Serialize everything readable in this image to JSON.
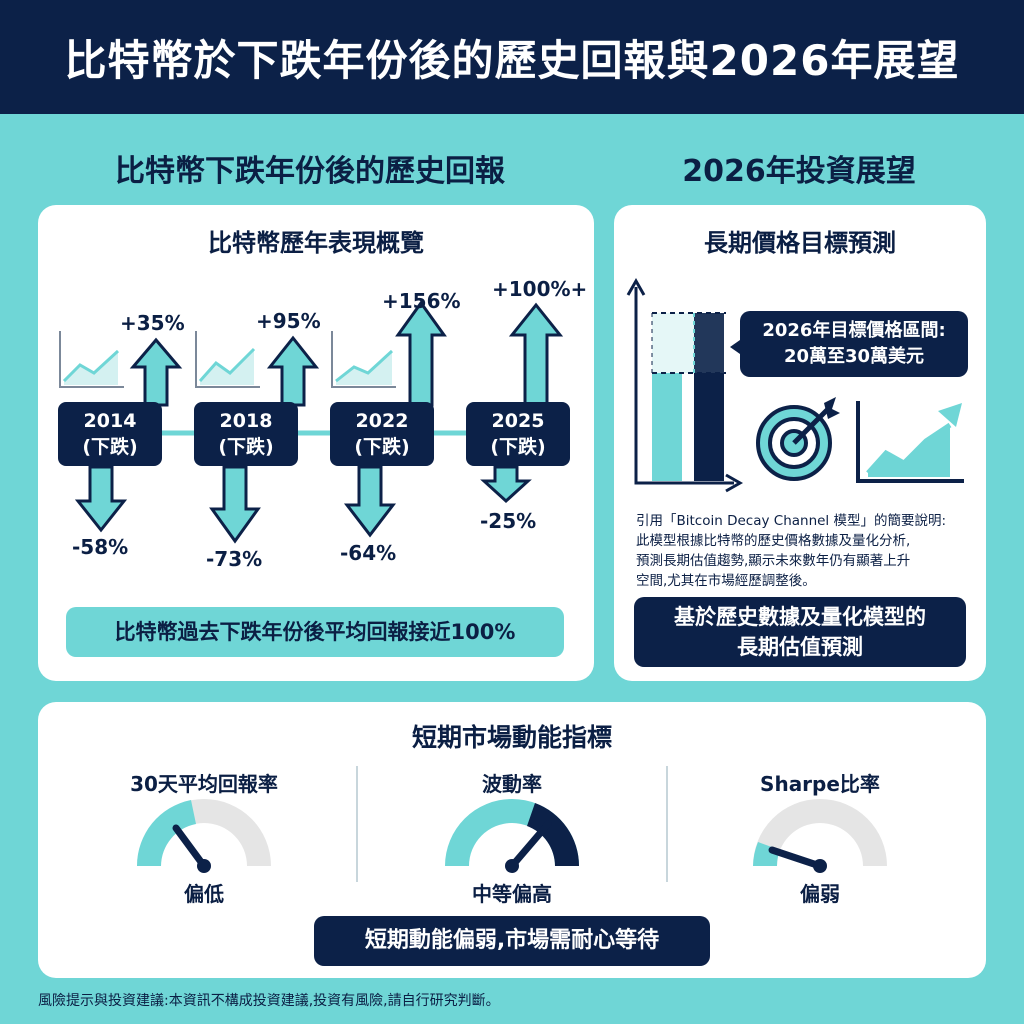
{
  "header": {
    "title": "比特幣於下跌年份後的歷史回報與2026年展望"
  },
  "left_section": {
    "title": "比特幣下跌年份後的歷史回報",
    "card_title": "比特幣歷年表現概覽",
    "years": [
      {
        "year": "2014",
        "note": "(下跌)",
        "up": "+35%",
        "down": "-58%"
      },
      {
        "year": "2018",
        "note": "(下跌)",
        "up": "+95%",
        "down": "-73%"
      },
      {
        "year": "2022",
        "note": "(下跌)",
        "up": "+156%",
        "down": "-64%"
      },
      {
        "year": "2025",
        "note": "(下跌)",
        "up": "+100%+",
        "down": "-25%"
      }
    ],
    "summary": "比特幣過去下跌年份後平均回報接近100%"
  },
  "right_section": {
    "title": "2026年投資展望",
    "card_title": "長期價格目標預測",
    "target_line1": "2026年目標價格區間:",
    "target_line2": "20萬至30萬美元",
    "desc_lines": [
      "引用「Bitcoin Decay Channel 模型」的簡要說明:",
      "此模型根據比特幣的歷史價格數據及量化分析,",
      "預測長期估值趨勢,顯示未來數年仍有顯著上升",
      "空間,尤其在市場經歷調整後。"
    ],
    "banner_line1": "基於歷史數據及量化模型的",
    "banner_line2": "長期估值預測"
  },
  "bottom_section": {
    "title": "短期市場動能指標",
    "gauges": [
      {
        "name": "30天平均回報率",
        "label": "偏低"
      },
      {
        "name": "波動率",
        "label": "中等偏高"
      },
      {
        "name": "Sharpe比率",
        "label": "偏弱"
      }
    ],
    "summary": "短期動能偏弱,市場需耐心等待"
  },
  "footer": {
    "disclaimer": "風險提示與投資建議:本資訊不構成投資建議,投資有風險,請自行研究判斷。"
  },
  "colors": {
    "navy": "#0c2148",
    "teal": "#6fd6d6",
    "gray": "#e5e5e5"
  },
  "icons": [
    "line-chart-icon",
    "arrow-up-icon",
    "arrow-down-icon",
    "target-icon",
    "growth-chart-icon"
  ]
}
